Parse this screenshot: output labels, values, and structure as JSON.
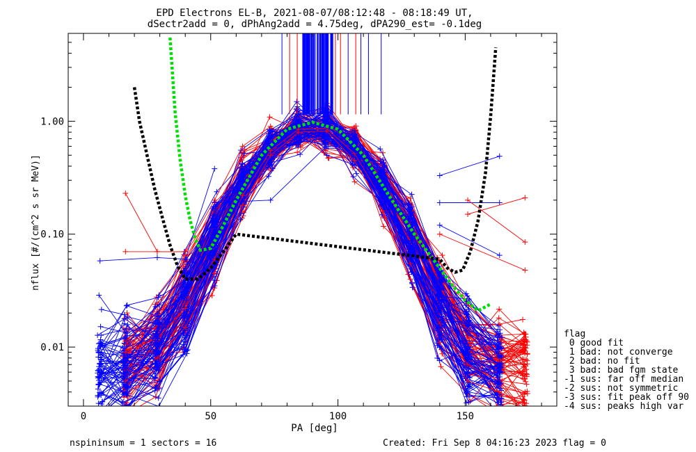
{
  "header": {
    "title_line1": "EPD Electrons EL-B, 2021-08-07/08:12:48 - 08:18:49 UT,",
    "title_line2": "dSectr2add = 0, dPhAng2add = 4.75deg, dPA290_est=  -0.1deg"
  },
  "footer": {
    "left": "nspininsum =  1  sectors = 16",
    "right": "Created: Fri Sep  8 04:16:23 2023   flag = 0"
  },
  "flag_legend": {
    "heading": "flag",
    "items": [
      " 0 good fit",
      " 1 bad: not converge",
      " 2 bad: no fit",
      " 3 bad: bad fgm state",
      "-1 sus: far off median",
      "-2 sus: not symmetric",
      "-3 sus: fit peak off 90",
      "-4 sus: peaks high var"
    ]
  },
  "colors": {
    "red": "#ff0000",
    "blue": "#0000ff",
    "green": "#00e000",
    "black": "#000000"
  },
  "chart_data": {
    "type": "line",
    "xlabel": "PA [deg]",
    "ylabel": "nflux [#/(cm^2 s sr MeV)]",
    "xlim": [
      -6,
      186
    ],
    "ylim": [
      0.003,
      6
    ],
    "yscale": "log",
    "xticks": [
      0,
      50,
      100,
      150
    ],
    "yticks": [
      0.01,
      0.1,
      1.0
    ],
    "ytick_labels": [
      "0.01",
      "0.10",
      "1.00"
    ],
    "pa_bins": [
      6.5,
      16.5,
      29.0,
      40.0,
      51.5,
      62.5,
      73.5,
      84.5,
      95.5,
      106.5,
      117.5,
      128.5,
      140.0,
      151.0,
      163.5,
      173.5
    ],
    "series": [
      {
        "color": "red",
        "x": [
          16.5,
          29.0,
          40.0,
          51.5,
          62.5,
          73.5,
          84.5,
          95.5,
          106.5,
          117.5,
          128.5,
          140.0,
          151.0,
          163.5,
          173.5
        ],
        "y": [
          0.009,
          0.012,
          0.022,
          0.06,
          0.22,
          0.55,
          0.85,
          0.86,
          0.52,
          0.2,
          0.055,
          0.016,
          0.007,
          0.005,
          0.004
        ]
      },
      {
        "color": "red",
        "x": [
          16.5,
          29.0,
          40.0,
          51.5,
          62.5,
          73.5,
          84.5,
          95.5,
          106.5,
          117.5,
          128.5,
          140.0,
          151.0,
          163.5,
          173.5
        ],
        "y": [
          0.005,
          0.008,
          0.015,
          0.045,
          0.18,
          0.5,
          0.8,
          0.82,
          0.45,
          0.16,
          0.04,
          0.011,
          0.005,
          0.004,
          0.003
        ]
      },
      {
        "color": "blue",
        "x": [
          6.5,
          16.5,
          29.0,
          40.0,
          51.5,
          62.5,
          73.5,
          84.5,
          95.5,
          106.5,
          117.5,
          128.5,
          140.0,
          151.0,
          163.5
        ],
        "y": [
          0.006,
          0.008,
          0.012,
          0.03,
          0.09,
          0.3,
          0.7,
          0.95,
          0.92,
          0.6,
          0.25,
          0.08,
          0.015,
          0.008,
          0.006
        ]
      },
      {
        "color": "blue",
        "x": [
          6.5,
          16.5,
          29.0,
          40.0,
          51.5,
          62.5,
          73.5,
          84.5,
          95.5,
          106.5,
          117.5,
          128.5,
          140.0,
          151.0,
          163.5
        ],
        "y": [
          0.01,
          0.012,
          0.02,
          0.05,
          0.12,
          0.35,
          0.75,
          0.97,
          0.9,
          0.55,
          0.2,
          0.06,
          0.012,
          0.006,
          0.005
        ]
      }
    ],
    "green_fit": {
      "x": [
        34,
        36,
        38,
        40,
        42,
        44,
        46,
        50,
        55,
        60,
        70,
        80,
        90,
        100,
        110,
        120,
        130,
        140,
        145,
        150,
        155,
        160
      ],
      "y": [
        5.5,
        1.2,
        0.45,
        0.22,
        0.13,
        0.09,
        0.072,
        0.075,
        0.12,
        0.2,
        0.5,
        0.85,
        0.98,
        0.85,
        0.5,
        0.22,
        0.1,
        0.05,
        0.035,
        0.026,
        0.021,
        0.024
      ]
    },
    "black_fit": {
      "x": [
        20,
        22,
        25,
        28,
        31,
        34,
        37,
        40,
        45,
        50,
        55,
        60,
        140,
        143,
        146,
        149,
        152,
        155,
        158,
        160,
        162
      ],
      "y": [
        2.0,
        1.0,
        0.5,
        0.25,
        0.14,
        0.08,
        0.052,
        0.04,
        0.04,
        0.05,
        0.07,
        0.1,
        0.06,
        0.05,
        0.046,
        0.048,
        0.07,
        0.13,
        0.35,
        1.1,
        4.5
      ]
    }
  }
}
